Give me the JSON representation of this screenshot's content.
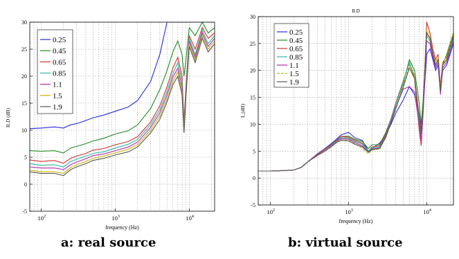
{
  "chart_data": [
    {
      "type": "line",
      "panel_caption": "a: real source",
      "title": "",
      "xlabel": "frequency (Hz)",
      "ylabel": "ILD (dB)",
      "xscale": "log",
      "xlim": [
        70,
        22000
      ],
      "ylim": [
        -5,
        30
      ],
      "yticks": [
        -5,
        0,
        5,
        10,
        15,
        20,
        25,
        30
      ],
      "xticks": [
        {
          "value": 100,
          "base": "10",
          "exp": "2"
        },
        {
          "value": 1000,
          "base": "10",
          "exp": "3"
        },
        {
          "value": 10000,
          "base": "10",
          "exp": "4"
        }
      ],
      "grid": true,
      "legend_position": "top-left",
      "x": [
        70,
        100,
        150,
        200,
        250,
        300,
        400,
        500,
        700,
        1000,
        1500,
        2000,
        3000,
        4000,
        5000,
        6000,
        7000,
        8000,
        8500,
        9000,
        10000,
        12000,
        15000,
        18000,
        22000
      ],
      "series": [
        {
          "name": "0.25",
          "color": "#2a2ad8",
          "values": [
            10.3,
            10.4,
            10.6,
            10.4,
            11.0,
            11.2,
            11.8,
            12.3,
            12.8,
            13.5,
            14.3,
            15.5,
            19.0,
            24.0,
            30.0,
            30.0,
            30.0,
            30.0,
            30.0,
            30.0,
            30.0,
            30.0,
            30.0,
            30.0,
            30.0
          ]
        },
        {
          "name": "0.45",
          "color": "#1f8a1f",
          "values": [
            6.2,
            6.1,
            6.2,
            5.8,
            6.7,
            7.0,
            7.5,
            8.0,
            8.5,
            9.3,
            9.9,
            11.0,
            14.0,
            17.5,
            21.0,
            24.5,
            26.5,
            24.0,
            20.0,
            23.0,
            29.0,
            27.5,
            30.0,
            28.0,
            29.0
          ]
        },
        {
          "name": "0.65",
          "color": "#d03030",
          "values": [
            4.5,
            4.2,
            4.4,
            3.9,
            4.8,
            5.2,
            5.7,
            6.3,
            6.6,
            7.3,
            7.9,
            8.8,
            11.5,
            14.5,
            18.0,
            21.5,
            23.5,
            20.0,
            11.5,
            18.0,
            27.5,
            25.0,
            29.0,
            27.0,
            28.0
          ]
        },
        {
          "name": "0.85",
          "color": "#2ab7a0",
          "values": [
            3.8,
            3.5,
            3.6,
            3.2,
            4.2,
            4.6,
            5.2,
            5.7,
            6.0,
            6.7,
            7.4,
            8.3,
            11.0,
            13.8,
            17.2,
            20.5,
            22.5,
            19.0,
            10.5,
            17.5,
            27.0,
            24.0,
            28.5,
            26.0,
            27.5
          ]
        },
        {
          "name": "1.1",
          "color": "#b028b0",
          "values": [
            3.2,
            3.0,
            3.0,
            2.7,
            3.6,
            4.1,
            4.7,
            5.3,
            5.6,
            6.2,
            6.9,
            7.8,
            10.5,
            13.2,
            16.5,
            19.8,
            21.5,
            18.0,
            10.0,
            17.0,
            26.5,
            23.5,
            28.0,
            25.5,
            27.0
          ]
        },
        {
          "name": "1.5",
          "color": "#c8b400",
          "values": [
            2.6,
            2.3,
            2.3,
            2.0,
            3.1,
            3.6,
            4.2,
            4.8,
            5.2,
            5.8,
            6.5,
            7.3,
            10.0,
            12.6,
            15.8,
            19.0,
            20.8,
            17.0,
            10.0,
            16.5,
            26.0,
            23.0,
            27.5,
            25.0,
            26.5
          ]
        },
        {
          "name": "1.9",
          "color": "#555555",
          "values": [
            2.3,
            2.0,
            2.0,
            1.6,
            2.7,
            3.2,
            3.8,
            4.4,
            4.8,
            5.4,
            6.0,
            6.9,
            9.5,
            12.0,
            15.2,
            18.4,
            20.0,
            16.5,
            9.5,
            16.0,
            25.5,
            22.5,
            27.0,
            24.5,
            26.0
          ]
        }
      ]
    },
    {
      "type": "line",
      "panel_caption": "b: virtual source",
      "title": "ILD",
      "xlabel": "frequency (Hz)",
      "ylabel": "I_(dB)",
      "xscale": "log",
      "xlim": [
        70,
        22000
      ],
      "ylim": [
        -5,
        30
      ],
      "yticks": [
        -5,
        0,
        5,
        10,
        15,
        20,
        25,
        30
      ],
      "xticks": [
        {
          "value": 100,
          "base": "10",
          "exp": "2"
        },
        {
          "value": 1000,
          "base": "10",
          "exp": "3"
        },
        {
          "value": 10000,
          "base": "10",
          "exp": "4"
        }
      ],
      "grid": true,
      "legend_position": "top-left",
      "x": [
        70,
        100,
        150,
        200,
        250,
        300,
        400,
        500,
        600,
        700,
        800,
        1000,
        1200,
        1500,
        1800,
        2000,
        2500,
        3000,
        3500,
        4000,
        5000,
        6000,
        7000,
        8000,
        8500,
        9000,
        10000,
        11000,
        12000,
        13000,
        14000,
        15000,
        16000,
        18000,
        22000
      ],
      "series": [
        {
          "name": "0.25",
          "color": "#2a2ad8",
          "values": [
            1.3,
            1.3,
            1.4,
            1.5,
            2.0,
            3.0,
            4.5,
            5.5,
            6.4,
            7.2,
            8.0,
            8.5,
            7.5,
            7.0,
            5.0,
            5.5,
            6.5,
            8.0,
            10.0,
            12.0,
            14.5,
            17.0,
            15.5,
            12.0,
            9.0,
            13.0,
            23.0,
            24.0,
            22.0,
            20.0,
            21.0,
            16.0,
            20.0,
            21.0,
            25.0
          ]
        },
        {
          "name": "0.45",
          "color": "#1f8a1f",
          "values": [
            1.3,
            1.3,
            1.4,
            1.5,
            2.0,
            3.0,
            4.4,
            5.4,
            6.2,
            7.0,
            7.7,
            7.8,
            7.2,
            6.8,
            5.5,
            6.2,
            6.2,
            8.5,
            11.0,
            13.5,
            17.5,
            22.0,
            20.0,
            14.0,
            10.0,
            14.5,
            27.0,
            26.0,
            23.0,
            21.0,
            22.0,
            16.5,
            21.0,
            23.0,
            27.0
          ]
        },
        {
          "name": "0.65",
          "color": "#d03030",
          "values": [
            1.3,
            1.3,
            1.4,
            1.5,
            2.0,
            3.0,
            4.4,
            5.4,
            6.2,
            7.0,
            7.7,
            7.6,
            7.0,
            6.5,
            5.0,
            5.8,
            6.0,
            8.2,
            11.0,
            13.8,
            18.0,
            21.5,
            18.5,
            9.0,
            6.0,
            12.5,
            29.0,
            27.0,
            24.0,
            22.0,
            23.0,
            17.0,
            21.5,
            22.5,
            26.5
          ]
        },
        {
          "name": "0.85",
          "color": "#2ab7a0",
          "values": [
            1.3,
            1.3,
            1.4,
            1.5,
            2.0,
            3.0,
            4.3,
            5.3,
            6.1,
            6.9,
            7.5,
            7.4,
            6.8,
            6.3,
            5.0,
            5.6,
            5.8,
            8.0,
            10.8,
            13.5,
            17.8,
            21.5,
            19.0,
            11.0,
            8.0,
            13.0,
            26.5,
            25.5,
            23.0,
            21.0,
            22.0,
            16.0,
            21.0,
            22.0,
            26.0
          ]
        },
        {
          "name": "1.1",
          "color": "#b028b0",
          "values": [
            1.3,
            1.3,
            1.4,
            1.5,
            2.0,
            3.0,
            4.3,
            5.2,
            6.0,
            6.8,
            7.3,
            7.2,
            6.6,
            6.0,
            4.8,
            5.4,
            5.6,
            7.8,
            10.5,
            13.0,
            16.5,
            17.0,
            16.0,
            10.0,
            7.0,
            12.0,
            25.5,
            25.0,
            22.5,
            20.5,
            21.5,
            15.5,
            20.5,
            21.5,
            25.5
          ]
        },
        {
          "name": "1.5",
          "color": "#c8b400",
          "values": [
            1.3,
            1.3,
            1.4,
            1.5,
            2.0,
            3.0,
            4.2,
            5.1,
            5.9,
            6.7,
            7.1,
            7.0,
            6.4,
            5.5,
            4.5,
            5.2,
            5.4,
            7.5,
            10.3,
            12.8,
            17.0,
            21.0,
            19.0,
            11.5,
            8.5,
            13.5,
            27.5,
            26.5,
            23.5,
            21.5,
            22.5,
            16.5,
            21.5,
            22.5,
            27.0
          ]
        },
        {
          "name": "1.9",
          "color": "#555555",
          "values": [
            1.3,
            1.3,
            1.4,
            1.5,
            2.0,
            3.0,
            4.2,
            5.0,
            5.8,
            6.6,
            7.0,
            6.9,
            6.3,
            5.8,
            4.8,
            5.3,
            5.5,
            7.6,
            10.3,
            12.8,
            16.8,
            20.5,
            18.5,
            11.5,
            8.5,
            13.5,
            27.0,
            26.0,
            23.0,
            21.0,
            22.0,
            16.0,
            21.0,
            22.0,
            26.5
          ]
        }
      ]
    }
  ]
}
